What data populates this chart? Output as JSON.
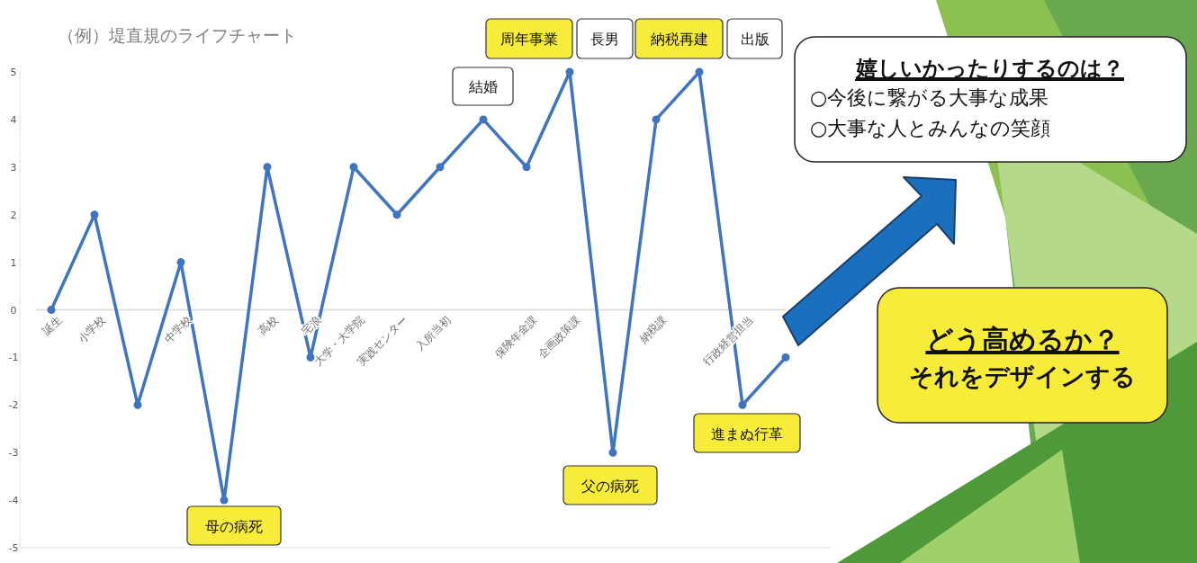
{
  "chart_data": {
    "type": "line",
    "title": "（例）堤直規のライフチャート",
    "categories": [
      "誕生",
      "小学校",
      null,
      "中学校",
      null,
      "高校",
      "宅浪",
      "大学・大学院",
      "実践センター",
      "入所当初",
      null,
      "保険年金課",
      "企画政策課",
      null,
      "納税課",
      null,
      "行政経営担当",
      null
    ],
    "values": [
      0,
      2,
      -2,
      1,
      -4,
      3,
      -1,
      3,
      2,
      3,
      4,
      3,
      5,
      -3,
      4,
      5,
      -2,
      -1
    ],
    "color": "#3f74c0",
    "marker": "circle",
    "grid": false,
    "ylim": [
      -5,
      5
    ],
    "yticks": [
      -5,
      -4,
      -3,
      -2,
      -1,
      0,
      1,
      2,
      3,
      4,
      5
    ],
    "annotations": [
      "結婚",
      "周年事業",
      "長男",
      "納税再建",
      "出版",
      "母の病死",
      "父の病死",
      "進まぬ行革",
      "嬉しいかったりするのは？",
      "○今後に繋がる大事な成果",
      "○大事な人とみんなの笑顔",
      "どう高めるか？",
      "それをデザインする"
    ]
  }
}
